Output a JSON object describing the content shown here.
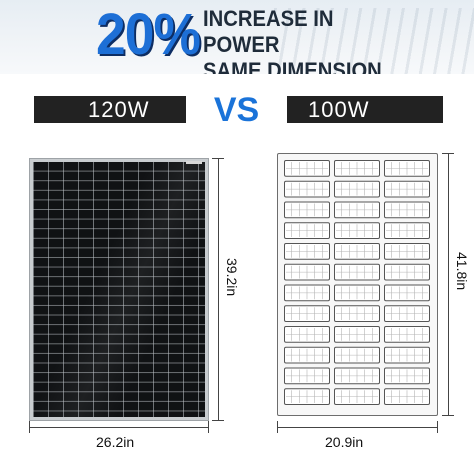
{
  "header": {
    "percent": "20%",
    "headline_line1": "INCREASE IN POWER",
    "headline_line2": "SAME DIMENSION"
  },
  "comparison": {
    "left_label": "120W",
    "vs_label": "VS",
    "right_label": "100W"
  },
  "panel_120w": {
    "width_label": "26.2in",
    "height_label": "39.2in",
    "cell_columns": 10,
    "cell_rows": 26
  },
  "panel_100w": {
    "width_label": "20.9in",
    "height_label": "41.8in",
    "cell_columns": 3,
    "cell_rows": 12
  },
  "colors": {
    "accent_blue": "#1a73d9",
    "bar_black": "#222222",
    "panel_black": "#101214"
  }
}
